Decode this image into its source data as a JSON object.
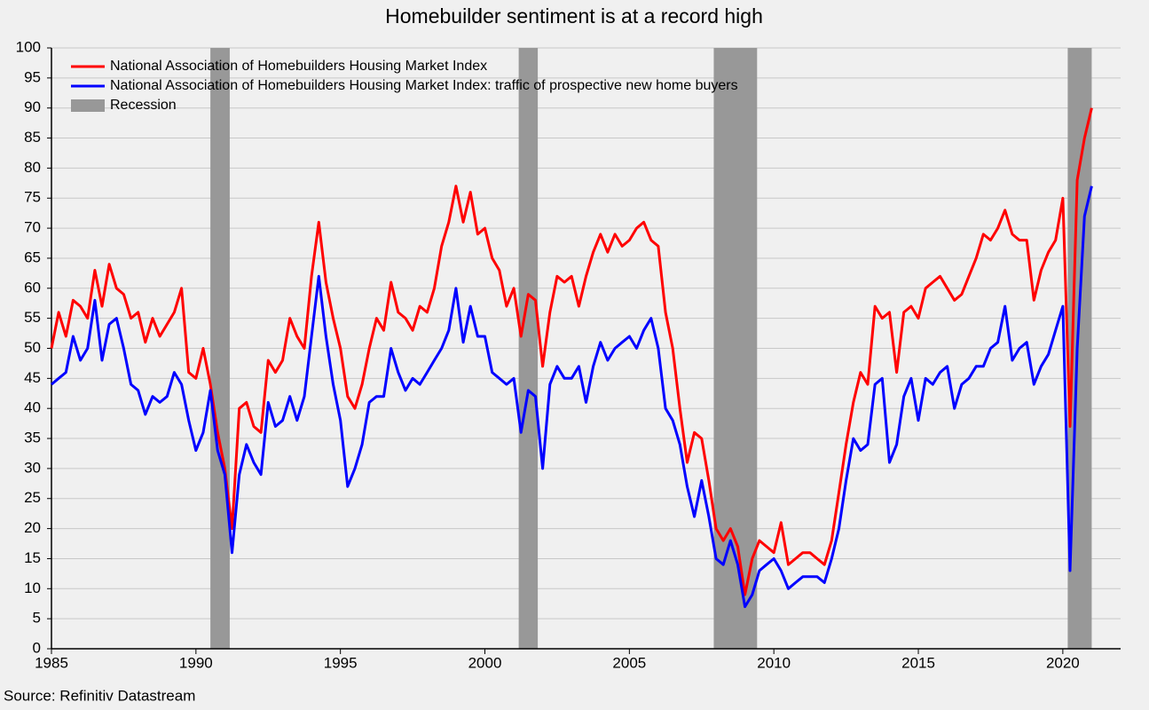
{
  "chart_data": {
    "type": "line",
    "title": "Homebuilder sentiment is at a record high",
    "source": "Source: Refinitiv Datastream",
    "x": [
      1985,
      1985.25,
      1985.5,
      1985.75,
      1986,
      1986.25,
      1986.5,
      1986.75,
      1987,
      1987.25,
      1987.5,
      1987.75,
      1988,
      1988.25,
      1988.5,
      1988.75,
      1989,
      1989.25,
      1989.5,
      1989.75,
      1990,
      1990.25,
      1990.5,
      1990.75,
      1991,
      1991.25,
      1991.5,
      1991.75,
      1992,
      1992.25,
      1992.5,
      1992.75,
      1993,
      1993.25,
      1993.5,
      1993.75,
      1994,
      1994.25,
      1994.5,
      1994.75,
      1995,
      1995.25,
      1995.5,
      1995.75,
      1996,
      1996.25,
      1996.5,
      1996.75,
      1997,
      1997.25,
      1997.5,
      1997.75,
      1998,
      1998.25,
      1998.5,
      1998.75,
      1999,
      1999.25,
      1999.5,
      1999.75,
      2000,
      2000.25,
      2000.5,
      2000.75,
      2001,
      2001.25,
      2001.5,
      2001.75,
      2002,
      2002.25,
      2002.5,
      2002.75,
      2003,
      2003.25,
      2003.5,
      2003.75,
      2004,
      2004.25,
      2004.5,
      2004.75,
      2005,
      2005.25,
      2005.5,
      2005.75,
      2006,
      2006.25,
      2006.5,
      2006.75,
      2007,
      2007.25,
      2007.5,
      2007.75,
      2008,
      2008.25,
      2008.5,
      2008.75,
      2009,
      2009.25,
      2009.5,
      2009.75,
      2010,
      2010.25,
      2010.5,
      2010.75,
      2011,
      2011.25,
      2011.5,
      2011.75,
      2012,
      2012.25,
      2012.5,
      2012.75,
      2013,
      2013.25,
      2013.5,
      2013.75,
      2014,
      2014.25,
      2014.5,
      2014.75,
      2015,
      2015.25,
      2015.5,
      2015.75,
      2016,
      2016.25,
      2016.5,
      2016.75,
      2017,
      2017.25,
      2017.5,
      2017.75,
      2018,
      2018.25,
      2018.5,
      2018.75,
      2019,
      2019.25,
      2019.5,
      2019.75,
      2020,
      2020.25,
      2020.5,
      2020.75,
      2021
    ],
    "series": [
      {
        "name": "National Association of Homebuilders Housing Market Index",
        "color": "#ff0000",
        "values": [
          50,
          56,
          52,
          58,
          57,
          55,
          63,
          57,
          64,
          60,
          59,
          55,
          56,
          51,
          55,
          52,
          54,
          56,
          60,
          46,
          45,
          50,
          44,
          36,
          30,
          20,
          40,
          41,
          37,
          36,
          48,
          46,
          48,
          55,
          52,
          50,
          62,
          71,
          61,
          55,
          50,
          42,
          40,
          44,
          50,
          55,
          53,
          61,
          56,
          55,
          53,
          57,
          56,
          60,
          67,
          71,
          77,
          71,
          76,
          69,
          70,
          65,
          63,
          57,
          60,
          52,
          59,
          58,
          47,
          56,
          62,
          61,
          62,
          57,
          62,
          66,
          69,
          66,
          69,
          67,
          68,
          70,
          71,
          68,
          67,
          56,
          50,
          40,
          31,
          36,
          35,
          28,
          20,
          18,
          20,
          17,
          9,
          15,
          18,
          17,
          16,
          21,
          14,
          15,
          16,
          16,
          15,
          14,
          18,
          26,
          34,
          41,
          46,
          44,
          57,
          55,
          56,
          46,
          56,
          57,
          55,
          60,
          61,
          62,
          60,
          58,
          59,
          62,
          65,
          69,
          68,
          70,
          73,
          69,
          68,
          68,
          58,
          63,
          66,
          68,
          75,
          37,
          78,
          85,
          90
        ]
      },
      {
        "name": "National Association of Homebuilders Housing Market Index: traffic of prospective new home buyers",
        "color": "#0000ff",
        "values": [
          44,
          45,
          46,
          52,
          48,
          50,
          58,
          48,
          54,
          55,
          50,
          44,
          43,
          39,
          42,
          41,
          42,
          46,
          44,
          38,
          33,
          36,
          43,
          33,
          29,
          16,
          29,
          34,
          31,
          29,
          41,
          37,
          38,
          42,
          38,
          42,
          52,
          62,
          52,
          44,
          38,
          27,
          30,
          34,
          41,
          42,
          42,
          50,
          46,
          43,
          45,
          44,
          46,
          48,
          50,
          53,
          60,
          51,
          57,
          52,
          52,
          46,
          45,
          44,
          45,
          36,
          43,
          42,
          30,
          44,
          47,
          45,
          45,
          47,
          41,
          47,
          51,
          48,
          50,
          51,
          52,
          50,
          53,
          55,
          50,
          40,
          38,
          34,
          27,
          22,
          28,
          22,
          15,
          14,
          18,
          14,
          7,
          9,
          13,
          14,
          15,
          13,
          10,
          11,
          12,
          12,
          12,
          11,
          15,
          20,
          28,
          35,
          33,
          34,
          44,
          45,
          31,
          34,
          42,
          45,
          38,
          45,
          44,
          46,
          47,
          40,
          44,
          45,
          47,
          47,
          50,
          51,
          57,
          48,
          50,
          51,
          44,
          47,
          49,
          53,
          57,
          13,
          50,
          72,
          77
        ]
      }
    ],
    "recession_label": "Recession",
    "recession_color": "#989898",
    "recessions": [
      [
        1990.5,
        1991.17
      ],
      [
        2001.17,
        2001.83
      ],
      [
        2007.92,
        2009.42
      ],
      [
        2020.17,
        2021
      ]
    ],
    "xlim": [
      1985,
      2022
    ],
    "xticks": [
      1985,
      1990,
      1995,
      2000,
      2005,
      2010,
      2015,
      2020
    ],
    "ylim": [
      0,
      100
    ],
    "yticks": [
      0,
      5,
      10,
      15,
      20,
      25,
      30,
      35,
      40,
      45,
      50,
      55,
      60,
      65,
      70,
      75,
      80,
      85,
      90,
      95,
      100
    ],
    "grid": true,
    "legend": "top-left"
  }
}
